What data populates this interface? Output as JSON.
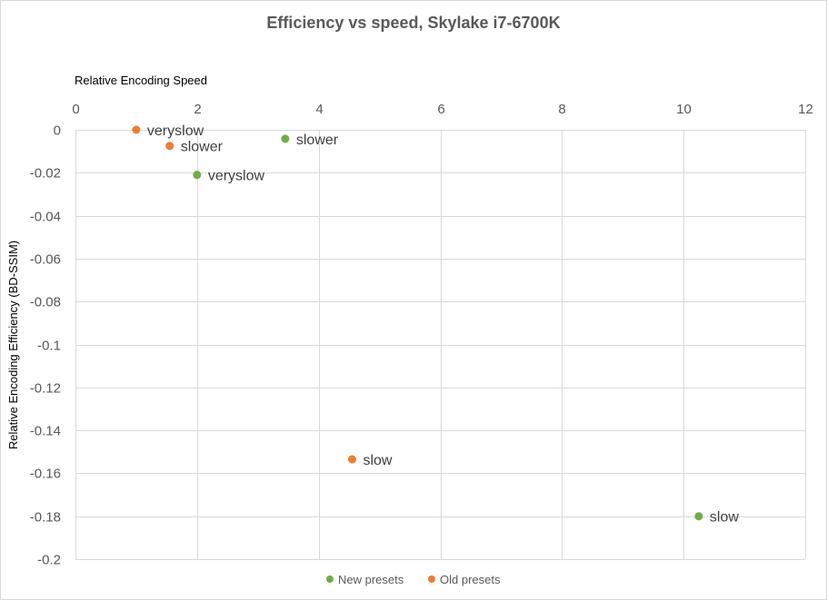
{
  "chart_data": {
    "type": "scatter",
    "title": "Efficiency vs speed, Skylake i7-6700K",
    "xlabel": "Relative Encoding Speed",
    "ylabel": "Relative Encoding Efficiency (BD-SSIM)",
    "xlim": [
      0,
      12
    ],
    "ylim": [
      -0.2,
      0
    ],
    "xticks": [
      0,
      2,
      4,
      6,
      8,
      10,
      12
    ],
    "yticks": [
      0,
      -0.02,
      -0.04,
      -0.06,
      -0.08,
      -0.1,
      -0.12,
      -0.14,
      -0.16,
      -0.18,
      -0.2
    ],
    "xtick_labels": [
      "0",
      "2",
      "4",
      "6",
      "8",
      "10",
      "12"
    ],
    "ytick_labels": [
      "0",
      "-0.02",
      "-0.04",
      "-0.06",
      "-0.08",
      "-0.1",
      "-0.12",
      "-0.14",
      "-0.16",
      "-0.18",
      "-0.2"
    ],
    "grid": true,
    "legend_position": "bottom",
    "series": [
      {
        "name": "New presets",
        "color": "#70ad47",
        "points": [
          {
            "x": 3.45,
            "y": -0.0042,
            "label": "slower"
          },
          {
            "x": 2.0,
            "y": -0.021,
            "label": "veryslow"
          },
          {
            "x": 10.25,
            "y": -0.18,
            "label": "slow"
          }
        ]
      },
      {
        "name": "Old presets",
        "color": "#ed7d31",
        "points": [
          {
            "x": 1.0,
            "y": 0.0,
            "label": "veryslow"
          },
          {
            "x": 1.55,
            "y": -0.0075,
            "label": "slower"
          },
          {
            "x": 4.55,
            "y": -0.1535,
            "label": "slow"
          }
        ]
      }
    ]
  }
}
